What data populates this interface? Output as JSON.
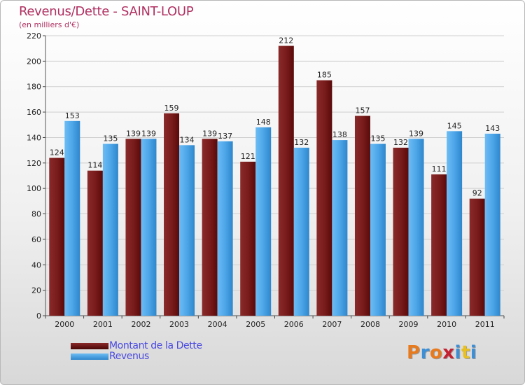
{
  "title": "Revenus/Dette - SAINT-LOUP",
  "subtitle": "(en milliers d'€)",
  "logo": {
    "letters": [
      "P",
      "r",
      "o",
      "x",
      "i",
      "t",
      "i"
    ],
    "colors": [
      "#e87a1e",
      "#3a8fd8",
      "#e87a1e",
      "#c52030",
      "#3a8fd8",
      "#e8c020",
      "#3a8fd8"
    ]
  },
  "chart_data": {
    "type": "bar",
    "categories": [
      "2000",
      "2001",
      "2002",
      "2003",
      "2004",
      "2005",
      "2006",
      "2007",
      "2008",
      "2009",
      "2010",
      "2011"
    ],
    "series": [
      {
        "name": "Montant de la Dette",
        "color": "#7a1a1a",
        "values": [
          124,
          114,
          139,
          159,
          139,
          121,
          212,
          185,
          157,
          132,
          111,
          92
        ]
      },
      {
        "name": "Revenus",
        "color": "#4da6e8",
        "values": [
          153,
          135,
          139,
          134,
          137,
          148,
          132,
          138,
          135,
          139,
          145,
          143
        ]
      }
    ],
    "yticks": [
      0,
      20,
      40,
      60,
      80,
      100,
      120,
      140,
      160,
      180,
      200,
      220
    ],
    "ylim": [
      0,
      220
    ],
    "grid": true,
    "legend": "bottom-left"
  }
}
